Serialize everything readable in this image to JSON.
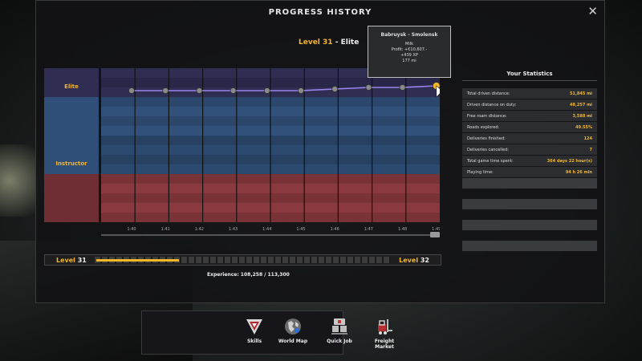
{
  "window": {
    "title": "PROGRESS HISTORY",
    "close_label": "✕"
  },
  "level_header": {
    "level_word": "Level",
    "level_number": "31",
    "rank": "- Elite"
  },
  "tooltip": {
    "route": "Babruysk - Smolensk",
    "cargo": "Milk",
    "profit": "Profit: +€10,607.-",
    "xp": "+439 XP",
    "distance": "177 mi"
  },
  "ranks": [
    {
      "label": "Elite"
    },
    {
      "label": "Instructor"
    }
  ],
  "chart_data": {
    "type": "line",
    "x": [
      "1:40",
      "1:41",
      "1:42",
      "1:43",
      "1:44",
      "1:45",
      "1:46",
      "1:47",
      "1:48",
      "1:49"
    ],
    "series": [
      {
        "values": [
          0.1,
          0.1,
          0.1,
          0.1,
          0.1,
          0.1,
          0.15,
          0.2,
          0.2,
          0.25
        ]
      }
    ],
    "ylim": [
      0,
      1
    ],
    "grid": true,
    "colors": {
      "line": "#9a86ee",
      "point": "#8a8a8a",
      "highlight": "#f3b52a"
    }
  },
  "xp_bar": {
    "level_word": "Level",
    "current_level": "31",
    "next_level": "32",
    "progress": 0.28
  },
  "experience_text": "Experience: 108,258 / 113,300",
  "statistics": {
    "title": "Your Statistics",
    "rows": [
      {
        "label": "Total driven distance:",
        "value": "51,845 mi"
      },
      {
        "label": "Driven distance on duty:",
        "value": "48,257 mi"
      },
      {
        "label": "Free roam distance:",
        "value": "3,588 mi"
      },
      {
        "label": "Roads explored:",
        "value": "49.55%"
      },
      {
        "label": "Deliveries finished:",
        "value": "124"
      },
      {
        "label": "Deliveries cancelled:",
        "value": "7"
      },
      {
        "label": "Total game time spent:",
        "value": "364 days 22 hour(s)"
      },
      {
        "label": "Playing time:",
        "value": "94 h 26 min"
      }
    ]
  },
  "bottom_menu": [
    {
      "label": "Skills",
      "icon": "skills-icon"
    },
    {
      "label": "World Map",
      "icon": "globe-icon"
    },
    {
      "label": "Quick Job",
      "icon": "quick-job-icon"
    },
    {
      "label": "Freight Market",
      "icon": "forklift-icon"
    }
  ],
  "colors": {
    "accent": "#f3b52a",
    "elite_band": "#2f2d52",
    "instructor_band": "#2f4f78",
    "lower_band": "#8a3a3e"
  }
}
